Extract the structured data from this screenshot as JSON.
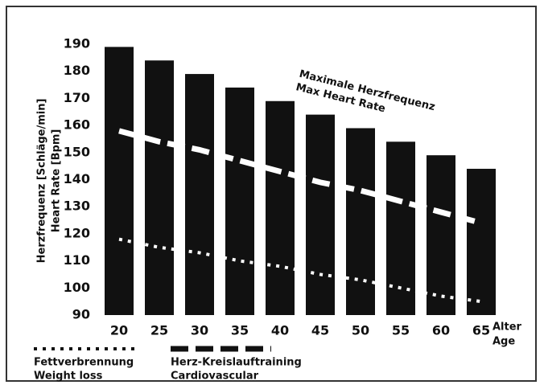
{
  "chart_data": {
    "type": "bar",
    "categories": [
      "20",
      "25",
      "30",
      "35",
      "40",
      "45",
      "50",
      "55",
      "60",
      "65"
    ],
    "values": [
      189,
      184,
      179,
      174,
      169,
      164,
      159,
      154,
      149,
      144
    ],
    "color": "#111111",
    "ylim": [
      90,
      190
    ],
    "yticks": [
      90,
      100,
      110,
      120,
      130,
      140,
      150,
      160,
      170,
      180,
      190
    ],
    "ylabel": [
      "Herzfrequenz [Schläge/min]",
      "Heart Rate [Bpm]"
    ],
    "xlabel": [
      "Alter",
      "Age"
    ],
    "annotation": [
      "Maximale Herzfrequenz",
      "Max Heart Rate"
    ],
    "series": [
      {
        "name": [
          "Fettverbrennung",
          "Weight loss"
        ],
        "style": "dotted",
        "color": "#ffffff",
        "values": [
          118,
          115,
          113,
          110,
          108,
          105,
          103,
          100,
          97,
          95
        ]
      },
      {
        "name": [
          "Herz-Kreislauftraining",
          "Cardiovascular"
        ],
        "style": "dashed",
        "color": "#ffffff",
        "values": [
          158,
          154,
          151,
          147,
          143,
          139,
          136,
          132,
          128,
          124
        ]
      }
    ]
  }
}
